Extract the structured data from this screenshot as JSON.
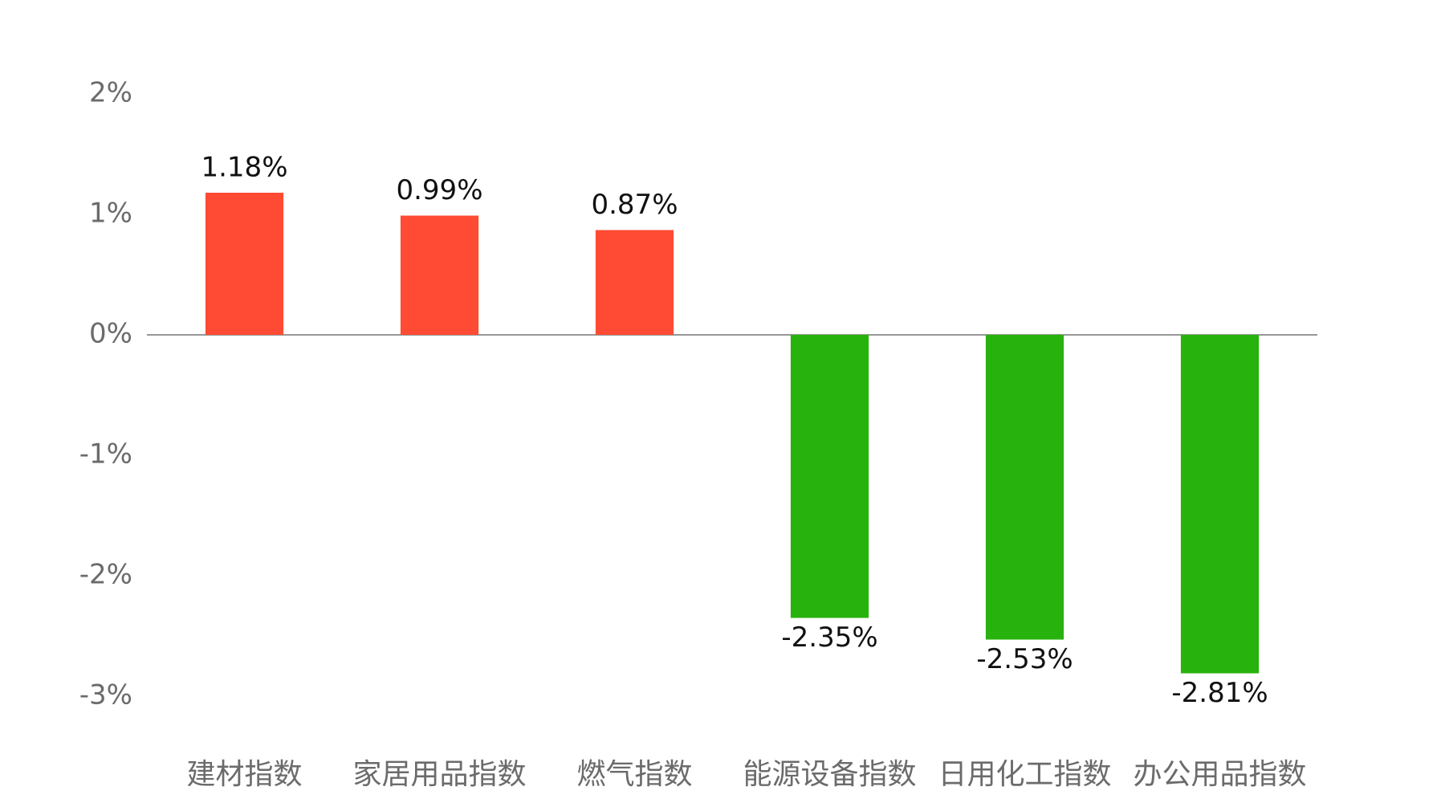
{
  "chart_data": {
    "type": "bar",
    "categories": [
      "建材指数",
      "家居用品指数",
      "燃气指数",
      "能源设备指数",
      "日用化工指数",
      "办公用品指数"
    ],
    "values": [
      1.18,
      0.99,
      0.87,
      -2.35,
      -2.53,
      -2.81
    ],
    "value_labels": [
      "1.18%",
      "0.99%",
      "0.87%",
      "-2.35%",
      "-2.53%",
      "-2.81%"
    ],
    "colors": [
      "#ff4b33",
      "#ff4b33",
      "#ff4b33",
      "#28b20e",
      "#28b20e",
      "#28b20e"
    ],
    "ylim": [
      -3,
      2
    ],
    "yticks": [
      {
        "value": 2,
        "label": "2%"
      },
      {
        "value": 1,
        "label": "1%"
      },
      {
        "value": 0,
        "label": "0%"
      },
      {
        "value": -1,
        "label": "-1%"
      },
      {
        "value": -2,
        "label": "-2%"
      },
      {
        "value": -3,
        "label": "-3%"
      }
    ],
    "zero_line": true
  }
}
